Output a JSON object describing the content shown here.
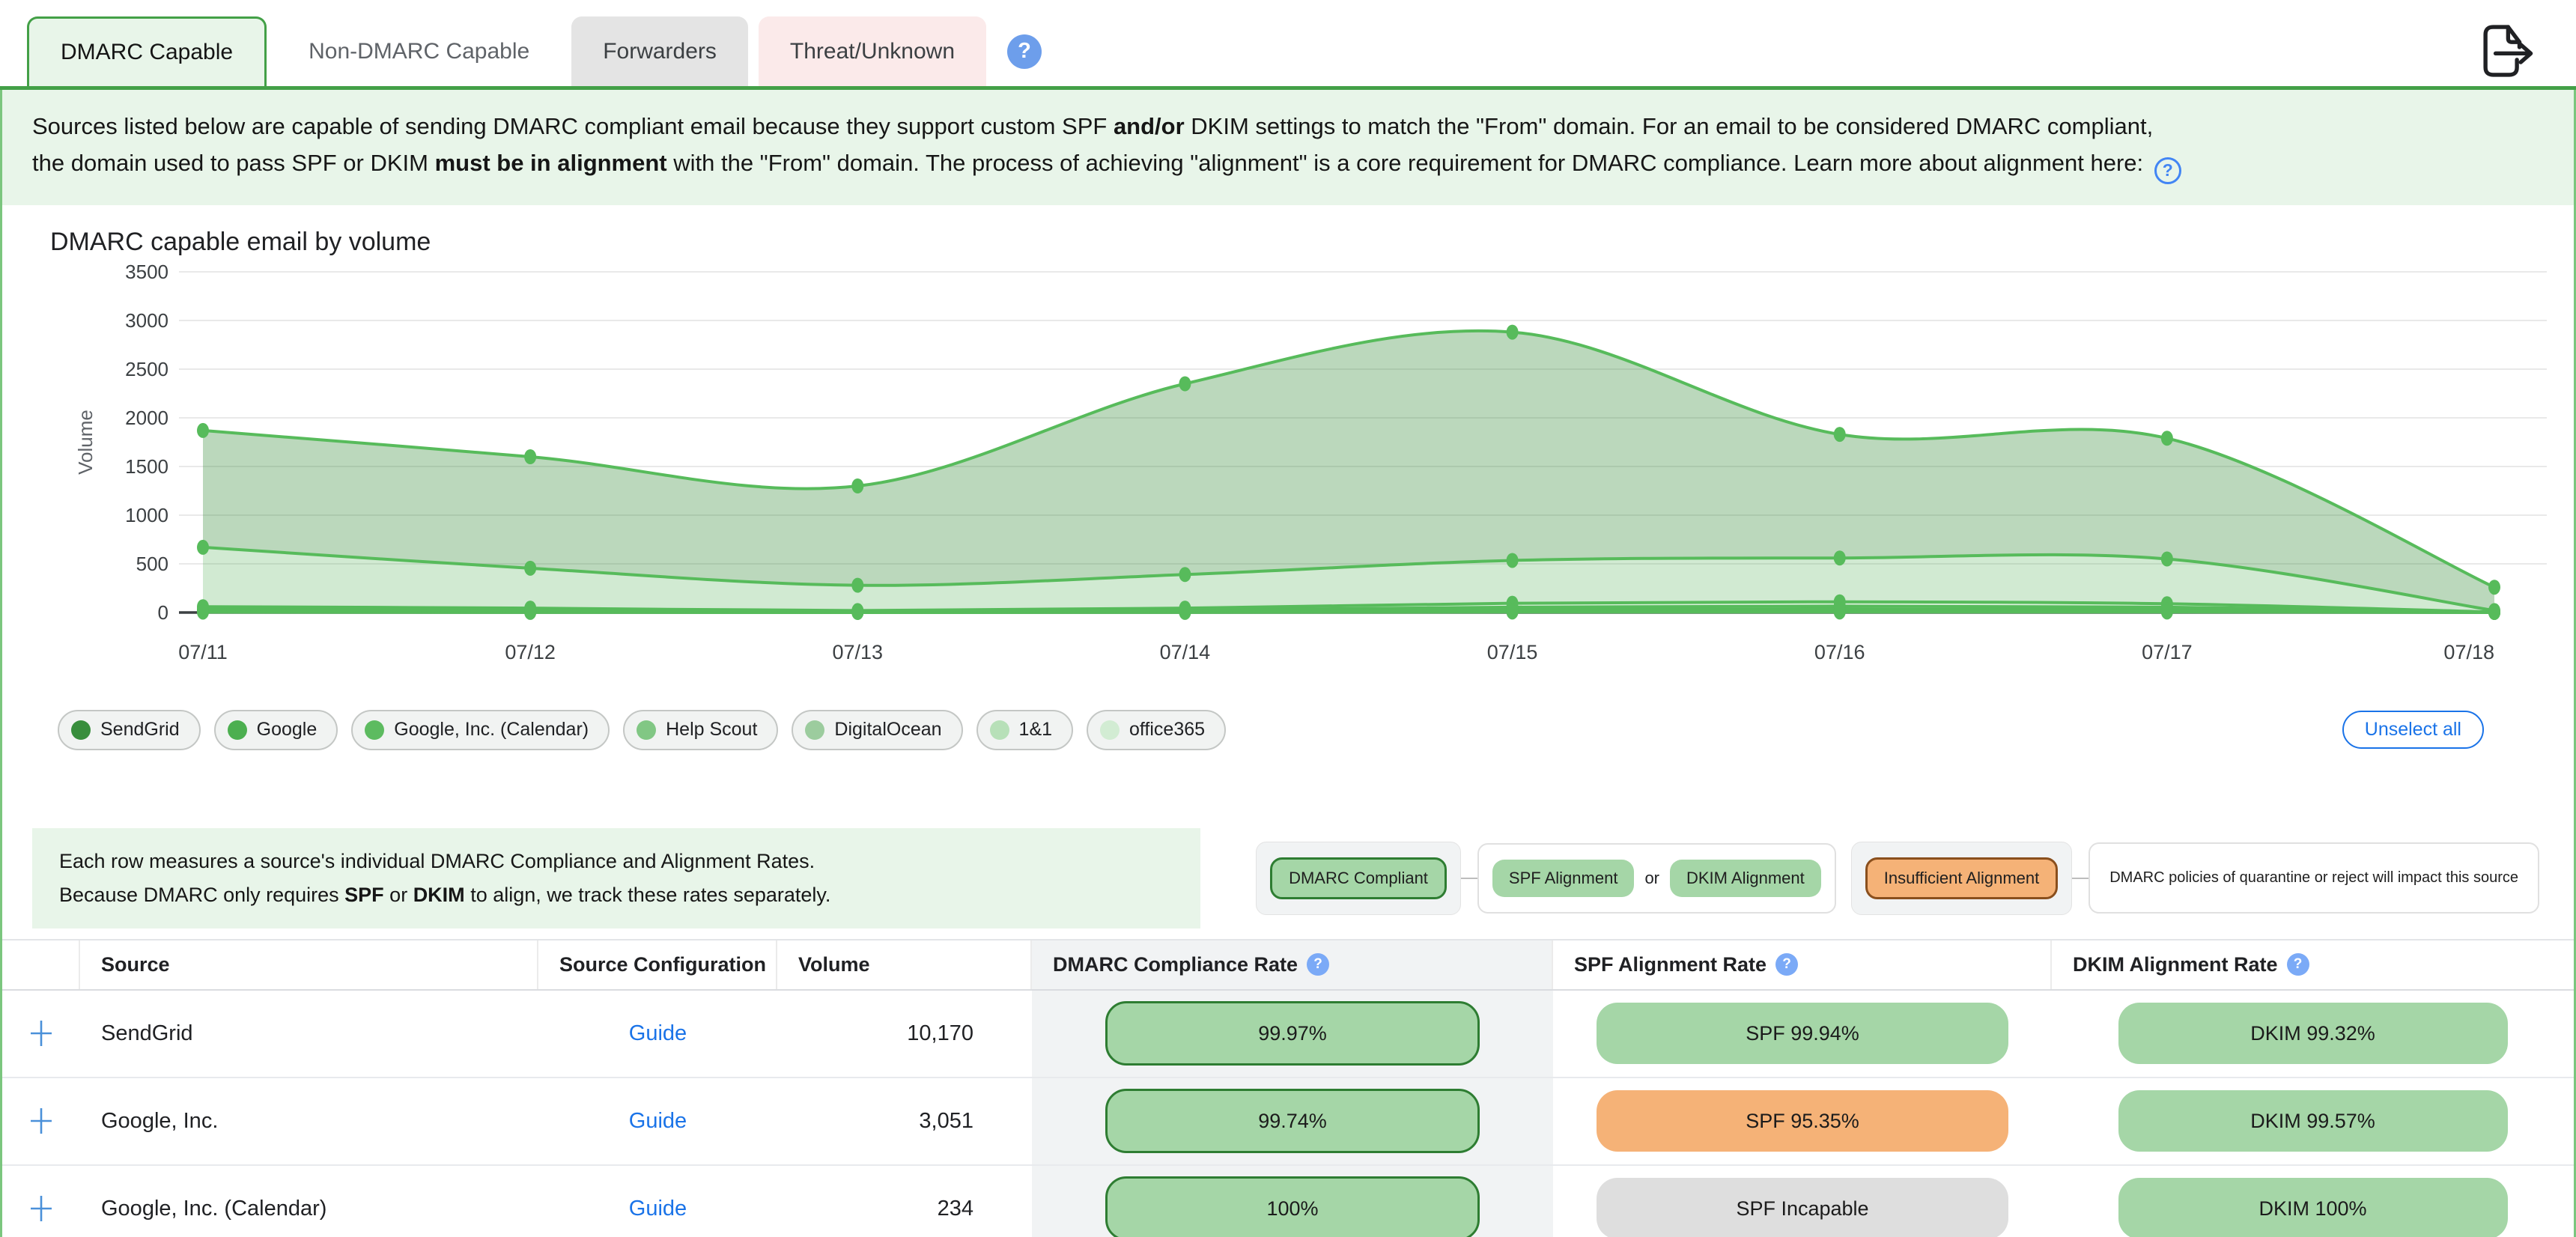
{
  "tabs": {
    "items": [
      {
        "label": "DMARC Capable",
        "state": "active"
      },
      {
        "label": "Non-DMARC Capable",
        "state": "plain"
      },
      {
        "label": "Forwarders",
        "state": "gray"
      },
      {
        "label": "Threat/Unknown",
        "state": "red"
      }
    ],
    "help_icon": "?"
  },
  "description": {
    "segments": [
      {
        "text": "Sources listed below are capable of sending DMARC compliant email because they support custom SPF "
      },
      {
        "text": "and/or",
        "bold": true
      },
      {
        "text": " DKIM settings to match the \"From\" domain. For an email to be considered DMARC compliant,"
      },
      {
        "br": true
      },
      {
        "text": "the domain used to pass SPF or DKIM "
      },
      {
        "text": "must be in alignment",
        "bold": true
      },
      {
        "text": " with the \"From\" domain. The process of achieving \"alignment\" is a core requirement for DMARC compliance. Learn more about alignment here: "
      }
    ],
    "help_icon": "?"
  },
  "chart_data": {
    "type": "area",
    "stacked": true,
    "title": "DMARC capable email by volume",
    "ylabel": "Volume",
    "ylim": [
      0,
      3500
    ],
    "yticks": [
      0,
      500,
      1000,
      1500,
      2000,
      2500,
      3000,
      3500
    ],
    "x": [
      "07/11",
      "07/12",
      "07/13",
      "07/14",
      "07/15",
      "07/16",
      "07/17",
      "07/18"
    ],
    "series": [
      {
        "name": "SendGrid",
        "color": "#388e3c",
        "values": [
          1200,
          1145,
          1020,
          1960,
          2345,
          1270,
          1240,
          240
        ]
      },
      {
        "name": "Google",
        "color": "#4caf50",
        "values": [
          610,
          410,
          260,
          345,
          440,
          450,
          460,
          15
        ]
      },
      {
        "name": "Google, Inc. (Calendar)",
        "color": "#5dbb60",
        "values": [
          25,
          20,
          8,
          20,
          40,
          45,
          35,
          2
        ]
      },
      {
        "name": "Help Scout",
        "color": "#81c784",
        "values": [
          15,
          12,
          6,
          12,
          25,
          30,
          25,
          2
        ]
      },
      {
        "name": "DigitalOcean",
        "color": "#9ccc9e",
        "values": [
          10,
          8,
          4,
          8,
          15,
          20,
          15,
          1
        ]
      },
      {
        "name": "1&1",
        "color": "#b7e0b8",
        "values": [
          6,
          4,
          2,
          4,
          10,
          10,
          10,
          0
        ]
      },
      {
        "name": "office365",
        "color": "#d2ecd3",
        "values": [
          4,
          1,
          0,
          1,
          5,
          5,
          5,
          0
        ]
      }
    ],
    "line_color": "#57bb5b",
    "grid": true,
    "legend_position": "bottom"
  },
  "legend": {
    "chips": [
      {
        "label": "SendGrid",
        "color": "#388e3c"
      },
      {
        "label": "Google",
        "color": "#4caf50"
      },
      {
        "label": "Google, Inc. (Calendar)",
        "color": "#5dbb60"
      },
      {
        "label": "Help Scout",
        "color": "#81c784"
      },
      {
        "label": "DigitalOcean",
        "color": "#9ccc9e"
      },
      {
        "label": "1&1",
        "color": "#b7e0b8"
      },
      {
        "label": "office365",
        "color": "#d2ecd3"
      }
    ],
    "unselect_label": "Unselect all"
  },
  "info_box": {
    "line1": [
      {
        "text": "Each row measures a source's individual DMARC Compliance and Alignment Rates."
      }
    ],
    "line2": [
      {
        "text": "Because DMARC only requires "
      },
      {
        "text": "SPF",
        "bold": true
      },
      {
        "text": " or "
      },
      {
        "text": "DKIM",
        "bold": true
      },
      {
        "text": " to align, we track these rates separately."
      }
    ]
  },
  "badge_legend": {
    "compliant_label": "DMARC Compliant",
    "spf_label": "SPF Alignment",
    "or_label": "or",
    "dkim_label": "DKIM Alignment",
    "insufficient_label": "Insufficient Alignment",
    "policy_note": "DMARC policies of quarantine or reject will impact this source"
  },
  "table": {
    "columns": [
      {
        "label": ""
      },
      {
        "label": "Source"
      },
      {
        "label": "Source Configuration"
      },
      {
        "label": "Volume"
      },
      {
        "label": "DMARC Compliance Rate",
        "help": true
      },
      {
        "label": "SPF Alignment Rate",
        "help": true
      },
      {
        "label": "DKIM Alignment Rate",
        "help": true
      }
    ],
    "rows": [
      {
        "source": "SendGrid",
        "config": "Guide",
        "volume": "10,170",
        "dmarc": "99.97%",
        "spf": {
          "label": "SPF 99.94%",
          "type": "green"
        },
        "dkim": {
          "label": "DKIM 99.32%",
          "type": "green"
        }
      },
      {
        "source": "Google, Inc.",
        "config": "Guide",
        "volume": "3,051",
        "dmarc": "99.74%",
        "spf": {
          "label": "SPF 95.35%",
          "type": "orange"
        },
        "dkim": {
          "label": "DKIM 99.57%",
          "type": "green"
        }
      },
      {
        "source": "Google, Inc. (Calendar)",
        "config": "Guide",
        "volume": "234",
        "dmarc": "100%",
        "spf": {
          "label": "SPF Incapable",
          "type": "gray"
        },
        "dkim": {
          "label": "DKIM 100%",
          "type": "green"
        }
      }
    ]
  }
}
